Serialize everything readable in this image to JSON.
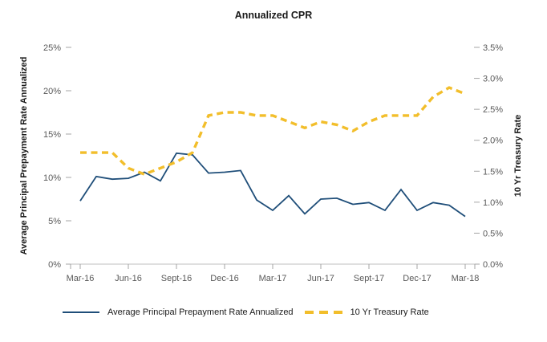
{
  "title": "Annualized CPR",
  "chart_data": {
    "type": "line",
    "title": "Annualized CPR",
    "x": [
      "Mar-16",
      "Apr-16",
      "May-16",
      "Jun-16",
      "Jul-16",
      "Aug-16",
      "Sept-16",
      "Oct-16",
      "Nov-16",
      "Dec-16",
      "Jan-17",
      "Feb-17",
      "Mar-17",
      "Apr-17",
      "May-17",
      "Jun-17",
      "Jul-17",
      "Aug-17",
      "Sept-17",
      "Oct-17",
      "Nov-17",
      "Dec-17",
      "Jan-18",
      "Feb-18",
      "Mar-18"
    ],
    "x_tick_labels": [
      "Mar-16",
      "Jun-16",
      "Sept-16",
      "Dec-16",
      "Mar-17",
      "Jun-17",
      "Sept-17",
      "Dec-17",
      "Mar-18"
    ],
    "series": [
      {
        "name": "Average Principal Prepayment Rate Annualized",
        "axis": "left",
        "line_style": "solid",
        "color": "#1F4E79",
        "values": [
          7.3,
          10.1,
          9.8,
          9.9,
          10.6,
          9.6,
          12.8,
          12.6,
          10.5,
          10.6,
          10.8,
          7.4,
          6.2,
          7.9,
          5.8,
          7.5,
          7.6,
          6.9,
          7.1,
          6.2,
          8.6,
          6.2,
          7.1,
          6.8,
          5.5
        ]
      },
      {
        "name": "10 Yr Treasury Rate",
        "axis": "right",
        "line_style": "dashed",
        "color": "#F2BE2B",
        "values": [
          1.8,
          1.8,
          1.8,
          1.55,
          1.45,
          1.55,
          1.65,
          1.8,
          2.4,
          2.45,
          2.45,
          2.4,
          2.4,
          2.3,
          2.2,
          2.3,
          2.25,
          2.15,
          2.3,
          2.4,
          2.4,
          2.4,
          2.7,
          2.85,
          2.75
        ]
      }
    ],
    "left_axis": {
      "title": "Average Principal Prepayment Rate Annualized",
      "min": 0,
      "max": 25,
      "tick_labels": [
        "0%",
        "5%",
        "10%",
        "15%",
        "20%",
        "25%"
      ]
    },
    "right_axis": {
      "title": "10 Yr Treasury Rate",
      "min": 0,
      "max": 3.5,
      "tick_labels": [
        "0.0%",
        "0.5%",
        "1.0%",
        "1.5%",
        "2.0%",
        "2.5%",
        "3.0%",
        "3.5%"
      ]
    },
    "grid": false,
    "legend_position": "bottom"
  }
}
